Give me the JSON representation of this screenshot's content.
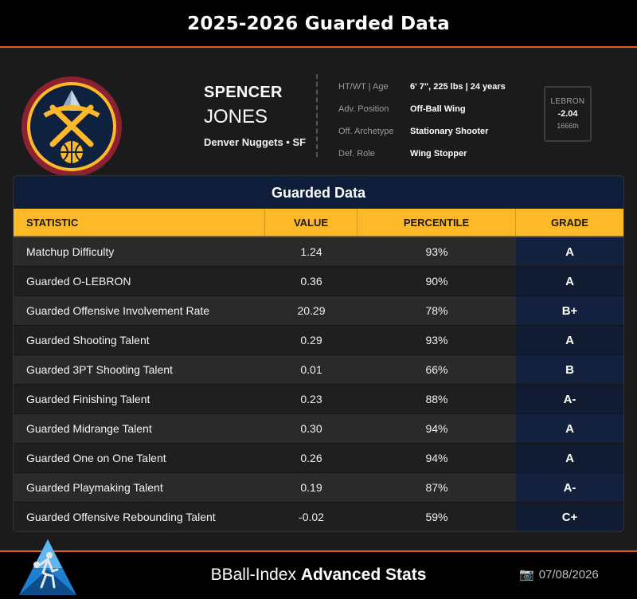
{
  "page_title": "2025-2026 Guarded Data",
  "player": {
    "first_name": "SPENCER",
    "last_name": "JONES",
    "team_line": "Denver Nuggets • SF"
  },
  "info": [
    {
      "label": "HT/WT | Age",
      "value": "6' 7\", 225 lbs | 24 years"
    },
    {
      "label": "Adv. Position",
      "value": "Off-Ball Wing"
    },
    {
      "label": "Off. Archetype",
      "value": "Stationary Shooter"
    },
    {
      "label": "Def. Role",
      "value": "Wing Stopper"
    }
  ],
  "lebron": {
    "label": "LEBRON",
    "value": "-2.04",
    "rank": "1666th"
  },
  "table": {
    "title": "Guarded Data",
    "headers": {
      "stat": "STATISTIC",
      "value": "VALUE",
      "percentile": "PERCENTILE",
      "grade": "GRADE"
    },
    "rows": [
      {
        "stat": "Matchup Difficulty",
        "value": "1.24",
        "percentile": "93%",
        "grade": "A"
      },
      {
        "stat": "Guarded O-LEBRON",
        "value": "0.36",
        "percentile": "90%",
        "grade": "A"
      },
      {
        "stat": "Guarded Offensive Involvement Rate",
        "value": "20.29",
        "percentile": "78%",
        "grade": "B+"
      },
      {
        "stat": "Guarded Shooting Talent",
        "value": "0.29",
        "percentile": "93%",
        "grade": "A"
      },
      {
        "stat": "Guarded 3PT Shooting Talent",
        "value": "0.01",
        "percentile": "66%",
        "grade": "B"
      },
      {
        "stat": "Guarded Finishing Talent",
        "value": "0.23",
        "percentile": "88%",
        "grade": "A-"
      },
      {
        "stat": "Guarded Midrange Talent",
        "value": "0.30",
        "percentile": "94%",
        "grade": "A"
      },
      {
        "stat": "Guarded One on One Talent",
        "value": "0.26",
        "percentile": "94%",
        "grade": "A"
      },
      {
        "stat": "Guarded Playmaking Talent",
        "value": "0.19",
        "percentile": "87%",
        "grade": "A-"
      },
      {
        "stat": "Guarded Offensive Rebounding Talent",
        "value": "-0.02",
        "percentile": "59%",
        "grade": "C+"
      }
    ]
  },
  "footer": {
    "brand_regular": "BBall-Index",
    "brand_bold": "Advanced Stats",
    "date": "07/08/2026",
    "camera_icon": "📷"
  },
  "colors": {
    "accent_orange": "#e25a2a",
    "header_gold": "#fdb927",
    "navy": "#0e1e3a"
  }
}
